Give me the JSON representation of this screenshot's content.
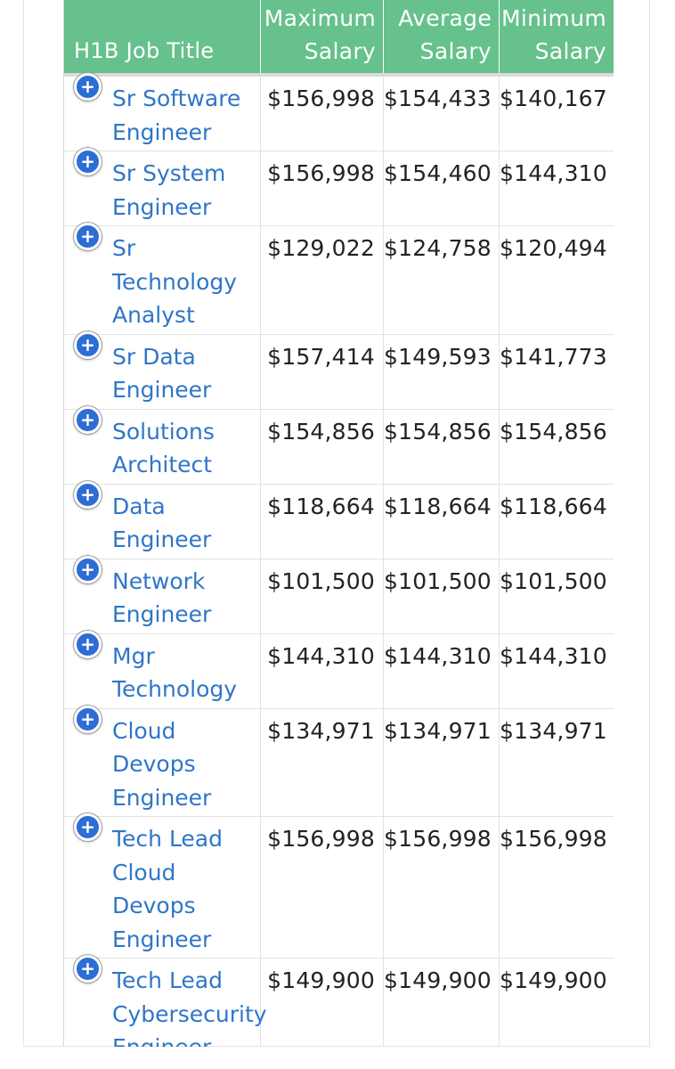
{
  "table": {
    "headers": {
      "title": "H1B Job Title",
      "max_line1": "Maximum",
      "max_line2": "Salary",
      "avg_line1": "Average",
      "avg_line2": "Salary",
      "min_line1": "Minimum",
      "min_line2": "Salary"
    },
    "expand_icon_glyph": "+",
    "rows": [
      {
        "title_lines": [
          "Sr Software",
          "Engineer"
        ],
        "max": "$156,998",
        "avg": "$154,433",
        "min": "$140,167"
      },
      {
        "title_lines": [
          "Sr System",
          "Engineer"
        ],
        "max": "$156,998",
        "avg": "$154,460",
        "min": "$144,310"
      },
      {
        "title_lines": [
          "Sr",
          "Technology",
          "Analyst"
        ],
        "max": "$129,022",
        "avg": "$124,758",
        "min": "$120,494"
      },
      {
        "title_lines": [
          "Sr Data",
          "Engineer"
        ],
        "max": "$157,414",
        "avg": "$149,593",
        "min": "$141,773"
      },
      {
        "title_lines": [
          "Solutions",
          "Architect"
        ],
        "max": "$154,856",
        "avg": "$154,856",
        "min": "$154,856"
      },
      {
        "title_lines": [
          "Data",
          "Engineer"
        ],
        "max": "$118,664",
        "avg": "$118,664",
        "min": "$118,664"
      },
      {
        "title_lines": [
          "Network",
          "Engineer"
        ],
        "max": "$101,500",
        "avg": "$101,500",
        "min": "$101,500"
      },
      {
        "title_lines": [
          "Mgr",
          "Technology"
        ],
        "max": "$144,310",
        "avg": "$144,310",
        "min": "$144,310"
      },
      {
        "title_lines": [
          "Cloud",
          "Devops",
          "Engineer"
        ],
        "max": "$134,971",
        "avg": "$134,971",
        "min": "$134,971"
      },
      {
        "title_lines": [
          "Tech Lead",
          "Cloud",
          "Devops",
          "Engineer"
        ],
        "max": "$156,998",
        "avg": "$156,998",
        "min": "$156,998"
      },
      {
        "title_lines": [
          "Tech Lead",
          "Cybersecurity",
          "Engineer"
        ],
        "max": "$149,900",
        "avg": "$149,900",
        "min": "$149,900"
      }
    ]
  }
}
